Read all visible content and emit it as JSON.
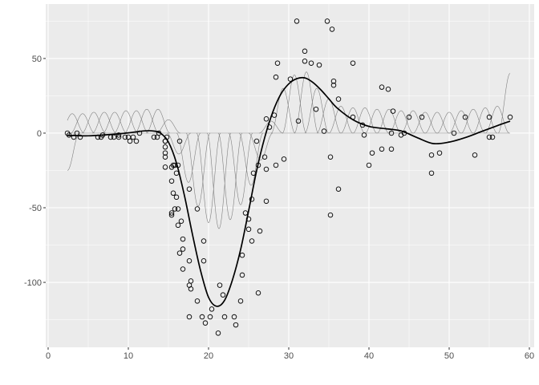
{
  "chart_data": {
    "type": "scatter",
    "title": "",
    "xlabel": "",
    "ylabel": "",
    "xlim": [
      -0.3,
      60.6
    ],
    "ylim": [
      -143.5,
      86.5
    ],
    "grid": true,
    "x_ticks": [
      "0",
      "10",
      "20",
      "30",
      "40",
      "50",
      "60"
    ],
    "y_ticks": [
      "50",
      "0",
      "-50",
      "-100"
    ],
    "x_tick_values": [
      0,
      10,
      20,
      30,
      40,
      50,
      60
    ],
    "y_tick_values": [
      50,
      0,
      -50,
      -100
    ],
    "colors": {
      "panel": "#ebebeb",
      "grid": "#ffffff",
      "points": "#000000",
      "fit": "#000000",
      "basis": "#808080"
    },
    "points": {
      "x": [
        2.4,
        2.6,
        3.2,
        3.6,
        4.0,
        6.2,
        6.6,
        6.8,
        7.8,
        8.2,
        8.8,
        8.8,
        9.6,
        10.0,
        10.2,
        10.6,
        11.0,
        11.4,
        13.2,
        13.6,
        13.8,
        14.6,
        14.6,
        14.6,
        14.6,
        14.6,
        14.6,
        14.8,
        15.4,
        15.4,
        15.4,
        15.4,
        15.6,
        15.6,
        15.8,
        15.8,
        16.0,
        16.0,
        16.2,
        16.2,
        16.2,
        16.4,
        16.4,
        16.6,
        16.8,
        16.8,
        16.8,
        17.6,
        17.6,
        17.6,
        17.6,
        17.8,
        17.8,
        18.6,
        18.6,
        19.2,
        19.4,
        19.4,
        19.6,
        20.2,
        20.4,
        21.2,
        21.4,
        21.8,
        22.0,
        23.2,
        23.4,
        24.0,
        24.2,
        24.2,
        24.6,
        25.0,
        25.0,
        25.4,
        25.4,
        25.6,
        26.0,
        26.2,
        26.2,
        26.4,
        27.0,
        27.2,
        27.2,
        27.2,
        27.6,
        28.2,
        28.4,
        28.4,
        28.6,
        29.4,
        30.2,
        31.0,
        31.2,
        32.0,
        32.0,
        32.8,
        33.4,
        33.8,
        34.4,
        34.8,
        35.2,
        35.2,
        35.4,
        35.6,
        35.6,
        36.2,
        36.2,
        38.0,
        38.0,
        39.2,
        39.4,
        40.0,
        40.4,
        41.6,
        41.6,
        42.4,
        42.8,
        42.8,
        43.0,
        44.0,
        44.4,
        45.0,
        46.6,
        47.8,
        47.8,
        48.8,
        50.6,
        52.0,
        53.2,
        55.0,
        55.0,
        55.4,
        57.6
      ],
      "y": [
        0.0,
        -1.3,
        -2.7,
        0.0,
        -2.7,
        -2.7,
        -2.7,
        -1.3,
        -2.7,
        -2.7,
        -1.3,
        -2.7,
        -2.7,
        -2.7,
        -5.4,
        -2.7,
        -5.4,
        0.0,
        -2.7,
        -2.7,
        0.0,
        -13.3,
        -5.4,
        -5.4,
        -9.3,
        -16.0,
        -22.8,
        -2.7,
        -22.8,
        -32.1,
        -53.5,
        -54.9,
        -40.2,
        -21.5,
        -21.5,
        -50.8,
        -42.9,
        -26.8,
        -21.5,
        -50.8,
        -61.7,
        -5.4,
        -80.4,
        -59.0,
        -71.0,
        -91.1,
        -77.7,
        -37.5,
        -85.6,
        -123.1,
        -101.9,
        -99.1,
        -104.4,
        -112.5,
        -50.8,
        -123.1,
        -85.6,
        -72.3,
        -127.2,
        -123.1,
        -117.9,
        -134.0,
        -101.9,
        -108.4,
        -123.1,
        -123.1,
        -128.5,
        -112.5,
        -95.1,
        -81.8,
        -53.5,
        -64.4,
        -57.6,
        -72.3,
        -44.3,
        -26.8,
        -5.4,
        -107.1,
        -21.5,
        -65.6,
        -16.0,
        -45.6,
        -24.2,
        9.5,
        4.0,
        12.0,
        -21.5,
        37.5,
        46.9,
        -17.4,
        36.2,
        75.0,
        8.1,
        54.9,
        48.2,
        46.9,
        16.0,
        45.6,
        1.3,
        75.0,
        -16.0,
        -54.9,
        69.6,
        34.8,
        32.1,
        -37.5,
        22.8,
        46.9,
        10.7,
        5.4,
        -1.3,
        -21.5,
        -13.3,
        30.8,
        -10.7,
        29.4,
        0.0,
        -10.7,
        14.7,
        -1.3,
        0.0,
        10.7,
        10.7,
        -26.8,
        -14.7,
        -13.3,
        0.0,
        10.7,
        -14.7,
        -2.7,
        10.7,
        -2.7,
        10.7
      ]
    },
    "fit": {
      "x": [
        2.4,
        5,
        8,
        10,
        12,
        13,
        14,
        15,
        16,
        17,
        18,
        19,
        20,
        21,
        22,
        23,
        24,
        25,
        26,
        27,
        28,
        29,
        30,
        31,
        32,
        33,
        34,
        35,
        36,
        38,
        40,
        42,
        44,
        46,
        48,
        50,
        52,
        54,
        56,
        57.6
      ],
      "y": [
        -1.5,
        -1.8,
        -0.8,
        0.2,
        1.5,
        1.5,
        0,
        -6,
        -20,
        -42,
        -68,
        -92,
        -110,
        -116,
        -112,
        -98,
        -78,
        -52,
        -25,
        -3,
        14,
        26,
        33,
        36.5,
        37,
        34,
        29,
        23,
        17,
        9,
        4.5,
        3,
        1.5,
        -3,
        -7,
        -6,
        -3,
        1,
        5,
        8
      ]
    },
    "basis": {
      "centers": [
        2.4,
        3.0,
        4.3,
        5.7,
        7.0,
        8.3,
        9.7,
        11.0,
        12.3,
        13.7,
        15.0,
        16.3,
        17.5,
        18.7,
        20.0,
        21.3,
        22.7,
        24.0,
        25.3,
        26.5,
        27.8,
        29.3,
        30.7,
        32.2,
        33.5,
        35.0,
        36.5,
        38.0,
        39.5,
        41.0,
        42.5,
        44.0,
        45.5,
        47.0,
        48.5,
        50.0,
        51.5,
        53.0,
        54.5,
        56.0,
        57.6
      ],
      "amplitudes": [
        -25,
        13,
        13,
        14,
        14,
        14,
        15,
        15,
        16,
        16,
        9,
        -14,
        -33,
        -49,
        -60,
        -64,
        -58,
        -48,
        -35,
        -18,
        8,
        30,
        39,
        41,
        30,
        23,
        18,
        17,
        17,
        16,
        16,
        15,
        15,
        14,
        14,
        14,
        15,
        16,
        17,
        18,
        40
      ]
    }
  }
}
